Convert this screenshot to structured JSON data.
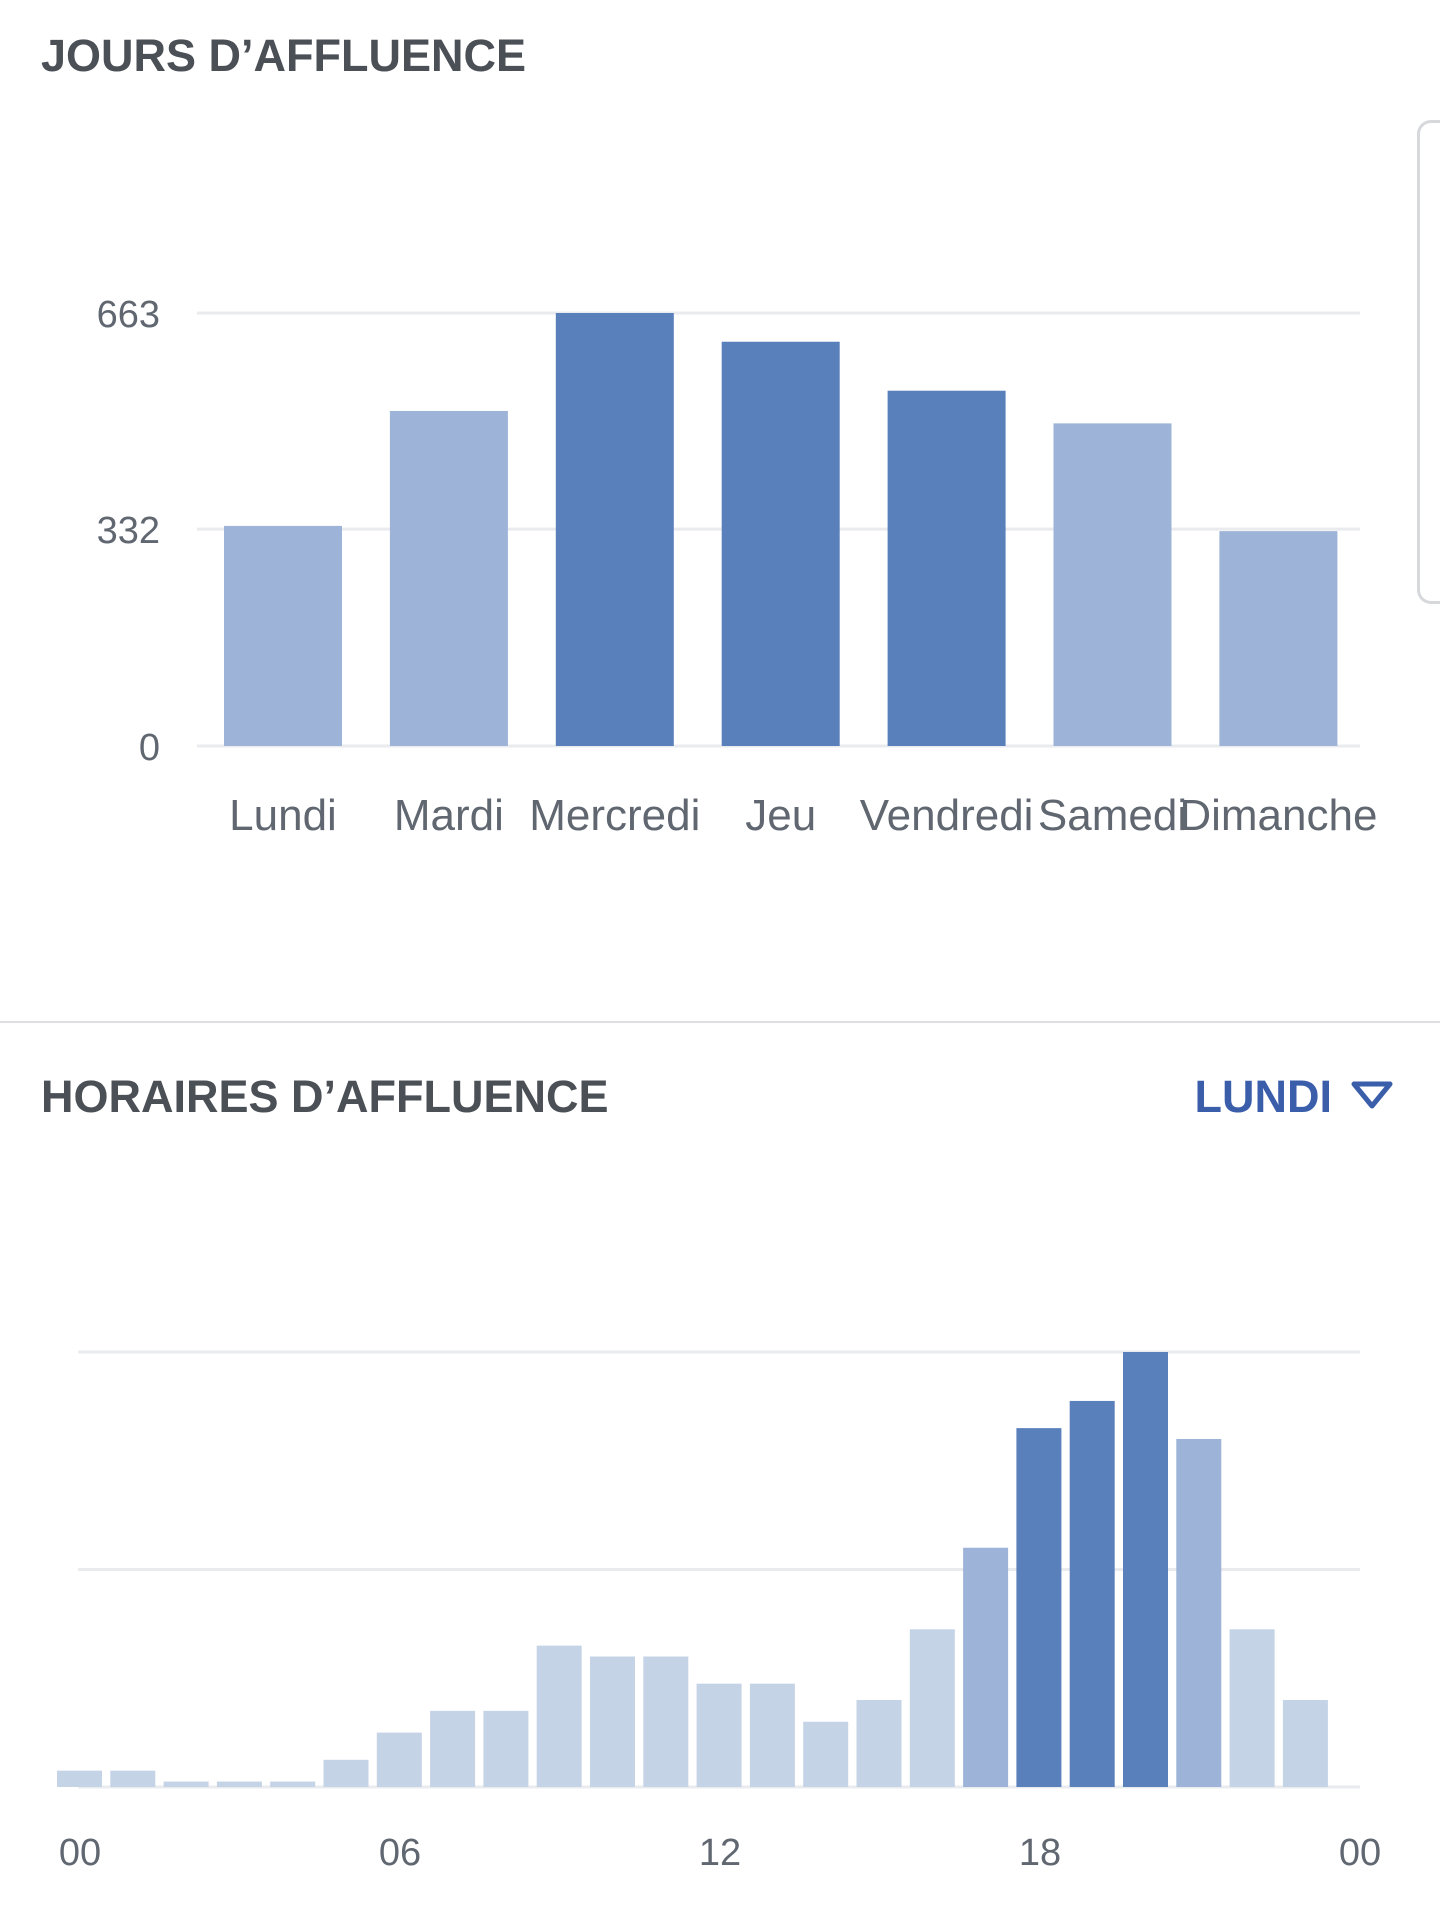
{
  "sections": {
    "days_title": "JOURS D’AFFLUENCE",
    "hours_title": "HORAIRES D’AFFLUENCE",
    "day_selector": "LUNDI",
    "day_selector_icon": "triangle-down-icon"
  },
  "colors": {
    "dark_bar": "#5a80bc",
    "medium_bar": "#9db3d8",
    "light_bar": "#c5d3e7",
    "accent": "#3b5eab",
    "gridline": "#e9ebee"
  },
  "chart_data": [
    {
      "type": "bar",
      "title": "JOURS D’AFFLUENCE",
      "categories": [
        "Lundi",
        "Mardi",
        "Mercredi",
        "Jeu",
        "Vendredi",
        "Samedi",
        "Dimanche"
      ],
      "values": [
        337,
        513,
        663,
        619,
        544,
        494,
        329
      ],
      "intensity": [
        "medium",
        "medium",
        "dark",
        "dark",
        "dark",
        "medium",
        "medium"
      ],
      "yticks": [
        0,
        332,
        663
      ],
      "ylim": [
        0,
        663
      ],
      "grid": true
    },
    {
      "type": "bar",
      "title": "HORAIRES D’AFFLUENCE",
      "hours": [
        0,
        1,
        2,
        3,
        4,
        5,
        6,
        7,
        8,
        9,
        10,
        11,
        12,
        13,
        14,
        15,
        16,
        17,
        18,
        19,
        20,
        21,
        22,
        23
      ],
      "values": [
        3,
        3,
        1,
        1,
        1,
        5,
        10,
        14,
        14,
        26,
        24,
        24,
        19,
        19,
        12,
        16,
        29,
        44,
        66,
        71,
        80,
        64,
        29,
        16
      ],
      "intensity": [
        "light",
        "light",
        "light",
        "light",
        "light",
        "light",
        "light",
        "light",
        "light",
        "light",
        "light",
        "light",
        "light",
        "light",
        "light",
        "light",
        "light",
        "medium",
        "dark",
        "dark",
        "dark",
        "medium",
        "light",
        "light"
      ],
      "xticks": [
        "00",
        "06",
        "12",
        "18",
        "00"
      ],
      "ylim": [
        0,
        80
      ],
      "grid": true
    }
  ]
}
